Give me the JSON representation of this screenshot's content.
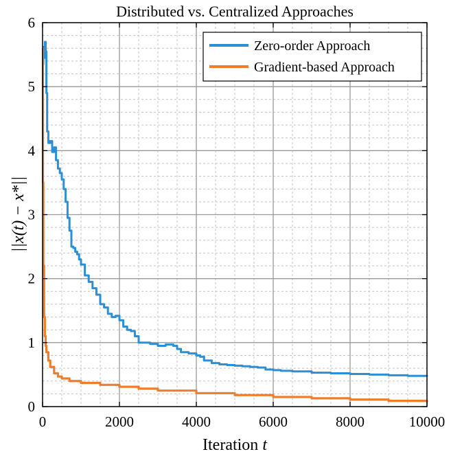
{
  "chart_data": {
    "type": "line",
    "title": "Distributed vs. Centralized Approaches",
    "xlabel": "Iteration",
    "xlabel_var": "t",
    "ylabel": "||x(t) − x*||",
    "xlim": [
      0,
      10000
    ],
    "ylim": [
      0,
      6
    ],
    "x_ticks": [
      0,
      2000,
      4000,
      6000,
      8000,
      10000
    ],
    "y_ticks": [
      0,
      1,
      2,
      3,
      4,
      5,
      6
    ],
    "x_tick_labels": [
      "0",
      "2000",
      "4000",
      "6000",
      "8000",
      "10000"
    ],
    "y_tick_labels": [
      "0",
      "1",
      "2",
      "3",
      "4",
      "5",
      "6"
    ],
    "grid": true,
    "minor_grid": true,
    "legend_position": "top-right",
    "series": [
      {
        "name": "Zero-order Approach",
        "color": "#2c8fd6",
        "x": [
          0,
          20,
          40,
          60,
          80,
          100,
          120,
          150,
          200,
          250,
          300,
          350,
          400,
          450,
          500,
          550,
          600,
          650,
          700,
          750,
          800,
          850,
          900,
          950,
          1000,
          1100,
          1200,
          1300,
          1400,
          1500,
          1600,
          1700,
          1800,
          1900,
          2000,
          2100,
          2200,
          2300,
          2400,
          2500,
          2600,
          2800,
          3000,
          3200,
          3400,
          3500,
          3600,
          3800,
          4000,
          4100,
          4200,
          4400,
          4600,
          4800,
          5000,
          5200,
          5400,
          5600,
          5800,
          6000,
          6200,
          6500,
          7000,
          7500,
          8000,
          8500,
          9000,
          9500,
          10000
        ],
        "values": [
          5.35,
          5.62,
          5.45,
          5.7,
          5.55,
          4.9,
          4.3,
          4.12,
          4.15,
          3.98,
          4.05,
          3.85,
          3.72,
          3.65,
          3.55,
          3.4,
          3.2,
          2.95,
          2.75,
          2.5,
          2.48,
          2.42,
          2.38,
          2.3,
          2.22,
          2.05,
          1.95,
          1.85,
          1.75,
          1.6,
          1.55,
          1.45,
          1.4,
          1.42,
          1.35,
          1.25,
          1.2,
          1.18,
          1.1,
          1.0,
          1.0,
          0.98,
          0.95,
          0.97,
          0.95,
          0.9,
          0.85,
          0.83,
          0.8,
          0.78,
          0.72,
          0.68,
          0.66,
          0.65,
          0.64,
          0.63,
          0.62,
          0.61,
          0.58,
          0.57,
          0.56,
          0.55,
          0.53,
          0.52,
          0.51,
          0.5,
          0.49,
          0.48,
          0.47
        ]
      },
      {
        "name": "Gradient-based Approach",
        "color": "#ef7d2e",
        "x": [
          0,
          10,
          20,
          40,
          60,
          80,
          100,
          150,
          200,
          300,
          400,
          500,
          700,
          1000,
          1500,
          2000,
          2500,
          3000,
          4000,
          5000,
          6000,
          7000,
          8000,
          9000,
          10000
        ],
        "values": [
          5.6,
          3.5,
          2.2,
          1.4,
          1.1,
          0.95,
          0.85,
          0.72,
          0.62,
          0.52,
          0.47,
          0.44,
          0.4,
          0.37,
          0.34,
          0.31,
          0.28,
          0.25,
          0.21,
          0.18,
          0.15,
          0.13,
          0.11,
          0.09,
          0.07
        ]
      }
    ]
  }
}
